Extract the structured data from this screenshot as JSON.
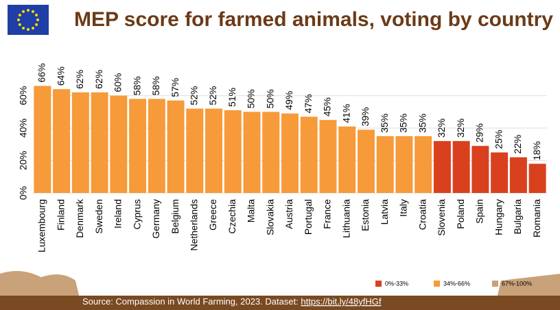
{
  "chart_data": {
    "type": "bar",
    "title": "MEP score for farmed animals, voting by country",
    "categories": [
      "Luxembourg",
      "Finland",
      "Denmark",
      "Sweden",
      "Ireland",
      "Cyprus",
      "Germany",
      "Belgium",
      "Netherlands",
      "Greece",
      "Czechia",
      "Malta",
      "Slovakia",
      "Austria",
      "Portugal",
      "France",
      "Lithuania",
      "Estonia",
      "Latvia",
      "Italy",
      "Croatia",
      "Slovenia",
      "Poland",
      "Spain",
      "Hungary",
      "Bulgaria",
      "Romania"
    ],
    "values": [
      66,
      64,
      62,
      62,
      60,
      58,
      58,
      57,
      52,
      52,
      51,
      50,
      50,
      49,
      47,
      45,
      41,
      39,
      35,
      35,
      35,
      32,
      32,
      29,
      25,
      22,
      18
    ],
    "value_labels": [
      "66%",
      "64%",
      "62%",
      "62%",
      "60%",
      "58%",
      "58%",
      "57%",
      "52%",
      "52%",
      "51%",
      "50%",
      "50%",
      "49%",
      "47%",
      "45%",
      "41%",
      "39%",
      "35%",
      "35%",
      "35%",
      "32%",
      "32%",
      "29%",
      "25%",
      "22%",
      "18%"
    ],
    "colors": [
      "#f79a3a",
      "#f79a3a",
      "#f79a3a",
      "#f79a3a",
      "#f79a3a",
      "#f79a3a",
      "#f79a3a",
      "#f79a3a",
      "#f79a3a",
      "#f79a3a",
      "#f79a3a",
      "#f79a3a",
      "#f79a3a",
      "#f79a3a",
      "#f79a3a",
      "#f79a3a",
      "#f79a3a",
      "#f79a3a",
      "#f79a3a",
      "#f79a3a",
      "#f79a3a",
      "#d9411e",
      "#d9411e",
      "#d9411e",
      "#d9411e",
      "#d9411e",
      "#d9411e"
    ],
    "ylim": [
      0,
      70
    ],
    "yticks": [
      {
        "value": 0,
        "label": "0%"
      },
      {
        "value": 20,
        "label": "20%"
      },
      {
        "value": 40,
        "label": "40%"
      },
      {
        "value": 60,
        "label": "60%"
      }
    ],
    "grid": true,
    "legend": [
      {
        "label": "0%-33%",
        "color": "#d9411e"
      },
      {
        "label": "34%-66%",
        "color": "#f79a3a"
      },
      {
        "label": "67%-100%",
        "color": "#c9a27a"
      }
    ],
    "source": "Source: Compassion in World Farming, 2023. Dataset: ",
    "source_link": "https://bit.ly/48yfHGf"
  }
}
